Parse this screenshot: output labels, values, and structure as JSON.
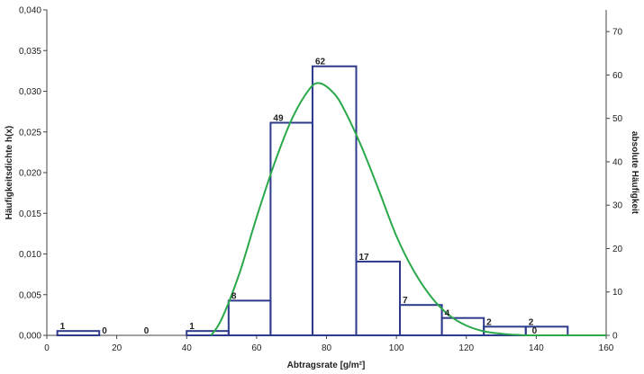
{
  "chart_data": {
    "type": "bar",
    "xlabel": "Abtragsrate [g/m²]",
    "ylabel_left": "Häufigkeitsdichte h(x)",
    "ylabel_right": "absolute Häufigkeit",
    "xlim": [
      0,
      160
    ],
    "ylim_left": [
      0,
      0.04
    ],
    "ylim_right": [
      0,
      75
    ],
    "x_ticks": [
      "0",
      "20",
      "40",
      "60",
      "80",
      "100",
      "120",
      "140",
      "160"
    ],
    "y_ticks_left": [
      "0,000",
      "0,005",
      "0,010",
      "0,015",
      "0,020",
      "0,025",
      "0,030",
      "0,035",
      "0,040"
    ],
    "y_ticks_right": [
      "0",
      "10",
      "20",
      "30",
      "40",
      "50",
      "60",
      "70"
    ],
    "grid": false,
    "bar_color": "#2e3a8c",
    "curve_color": "#2aa84a",
    "bins": [
      {
        "x0": 3,
        "x1": 15,
        "count": 1,
        "label": "1"
      },
      {
        "x0": 15,
        "x1": 27,
        "count": 0,
        "label": "0"
      },
      {
        "x0": 27,
        "x1": 40,
        "count": 0,
        "label": "0"
      },
      {
        "x0": 40,
        "x1": 52,
        "count": 1,
        "label": "1"
      },
      {
        "x0": 52,
        "x1": 64,
        "count": 8,
        "label": "8"
      },
      {
        "x0": 64,
        "x1": 76,
        "count": 49,
        "label": "49"
      },
      {
        "x0": 76,
        "x1": 88.5,
        "count": 62,
        "label": "62"
      },
      {
        "x0": 88.5,
        "x1": 101,
        "count": 17,
        "label": "17"
      },
      {
        "x0": 101,
        "x1": 113,
        "count": 7,
        "label": "7"
      },
      {
        "x0": 113,
        "x1": 125,
        "count": 4,
        "label": "4"
      },
      {
        "x0": 125,
        "x1": 137,
        "count": 2,
        "label": "2"
      },
      {
        "x0": 137,
        "x1": 149,
        "count": 2,
        "label": "2"
      }
    ],
    "extra_labels": [
      {
        "x": 138,
        "count": 0,
        "label": "0"
      }
    ],
    "density_curve": {
      "x": [
        47,
        50,
        55,
        60,
        65,
        70,
        75,
        78,
        82,
        85,
        90,
        95,
        100,
        105,
        110,
        115,
        120,
        125,
        130,
        135,
        140,
        160
      ],
      "y": [
        0.0,
        0.002,
        0.0075,
        0.0145,
        0.021,
        0.0265,
        0.0302,
        0.031,
        0.0298,
        0.0278,
        0.0232,
        0.0178,
        0.0122,
        0.0079,
        0.0047,
        0.0025,
        0.0012,
        0.0005,
        0.0002,
        5e-05,
        0.0,
        0.0
      ]
    }
  }
}
